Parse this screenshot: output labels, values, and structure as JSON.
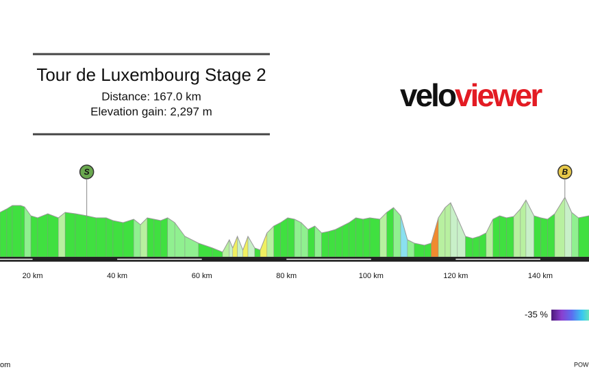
{
  "chart_data": {
    "type": "area",
    "title": "Tour de Luxembourg Stage 2",
    "subtitle": [
      "Distance: 167.0 km",
      "Elevation gain: 2,297 m"
    ],
    "logo": [
      "velo",
      "viewer"
    ],
    "x": [
      12.3,
      13.9,
      15.2,
      17.2,
      18.1,
      19.6,
      21.2,
      23.6,
      26.1,
      27.7,
      30.1,
      32.8,
      35.0,
      37.4,
      39.0,
      41.4,
      43.9,
      45.5,
      47.1,
      48.7,
      50.3,
      51.9,
      53.6,
      56.0,
      59.2,
      62.5,
      64.9,
      66.5,
      67.3,
      68.4,
      69.7,
      70.9,
      72.5,
      73.8,
      75.4,
      77.0,
      78.6,
      80.3,
      81.9,
      83.5,
      85.1,
      86.7,
      88.3,
      89.9,
      91.6,
      93.2,
      94.8,
      96.4,
      98.1,
      99.7,
      102.1,
      103.7,
      105.3,
      107.0,
      108.6,
      110.2,
      112.6,
      114.2,
      115.9,
      117.5,
      118.8,
      120.4,
      122.3,
      124.0,
      125.6,
      127.2,
      128.8,
      130.4,
      132.0,
      133.7,
      135.3,
      136.6,
      138.5,
      140.1,
      141.7,
      143.4,
      145.8,
      147.4,
      149.0,
      151.5
    ],
    "series": [
      {
        "color": "#999999",
        "values": [
          360,
          380,
          400,
          400,
          392,
          340,
          328,
          352,
          328,
          360,
          352,
          340,
          328,
          328,
          312,
          300,
          320,
          288,
          328,
          320,
          312,
          328,
          300,
          220,
          180,
          152,
          128,
          200,
          152,
          220,
          140,
          220,
          152,
          140,
          240,
          280,
          300,
          328,
          320,
          300,
          260,
          280,
          240,
          248,
          260,
          280,
          300,
          328,
          320,
          328,
          320,
          360,
          388,
          340,
          200,
          180,
          168,
          180,
          328,
          388,
          416,
          328,
          220,
          208,
          220,
          240,
          320,
          340,
          328,
          336,
          380,
          432,
          340,
          328,
          320,
          352,
          448,
          360,
          328,
          340
        ]
      }
    ],
    "xlim": [
      12.3,
      151.5
    ],
    "ylim": [
      100,
      500
    ],
    "xticks": [
      {
        "value": 20,
        "label": "20 km"
      },
      {
        "value": 40,
        "label": "40 km"
      },
      {
        "value": 60,
        "label": "60 km"
      },
      {
        "value": 80,
        "label": "80 km"
      },
      {
        "value": 100,
        "label": "100 km"
      },
      {
        "value": 120,
        "label": "120 km"
      },
      {
        "value": 140,
        "label": "140 km"
      }
    ],
    "markers": [
      {
        "label": "S",
        "x": 32.8,
        "color": "#6aa84f"
      },
      {
        "label": "B",
        "x": 145.8,
        "color": "#e8c94a"
      }
    ],
    "legend": {
      "min": {
        "value": -35,
        "label": "-35 %"
      },
      "colors": [
        "#4b1a7a",
        "#8a3fd0",
        "#5b6ef0",
        "#38c8f0",
        "#7ef0a0"
      ]
    },
    "footer": [
      "om",
      "POW"
    ]
  }
}
